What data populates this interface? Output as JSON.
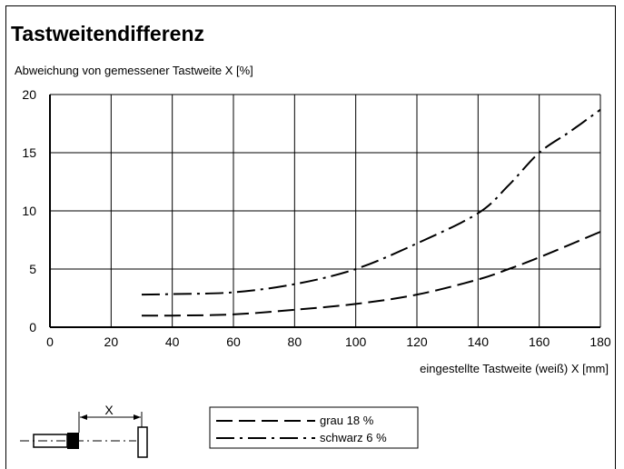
{
  "chart_data": {
    "type": "line",
    "title": "Tastweitendifferenz",
    "ylabel": "Abweichung von gemessener Tastweite X [%]",
    "xlabel": "eingestellte Tastweite (weiß) X [mm]",
    "xlim": [
      0,
      180
    ],
    "ylim": [
      0,
      20
    ],
    "xticks": [
      0,
      20,
      40,
      60,
      80,
      100,
      120,
      140,
      160,
      180
    ],
    "yticks": [
      0,
      5,
      10,
      15,
      20
    ],
    "grid": true,
    "legend_position": "bottom-center",
    "series": [
      {
        "name": "grau 18 %",
        "style": "dashed",
        "x": [
          30,
          40,
          60,
          80,
          100,
          120,
          140,
          150,
          160,
          180
        ],
        "y": [
          1.0,
          1.0,
          1.1,
          1.5,
          2.0,
          2.8,
          4.1,
          5.0,
          6.0,
          8.2
        ]
      },
      {
        "name": "schwarz 6 %",
        "style": "dash-dot",
        "x": [
          30,
          40,
          60,
          80,
          100,
          120,
          140,
          150,
          160,
          170,
          180
        ],
        "y": [
          2.8,
          2.85,
          3.0,
          3.7,
          5.0,
          7.2,
          9.8,
          12.2,
          15.0,
          16.8,
          18.7
        ]
      }
    ],
    "diagram_label": "X"
  },
  "colors": {
    "line": "#000000",
    "grid": "#000000",
    "background": "#ffffff"
  }
}
